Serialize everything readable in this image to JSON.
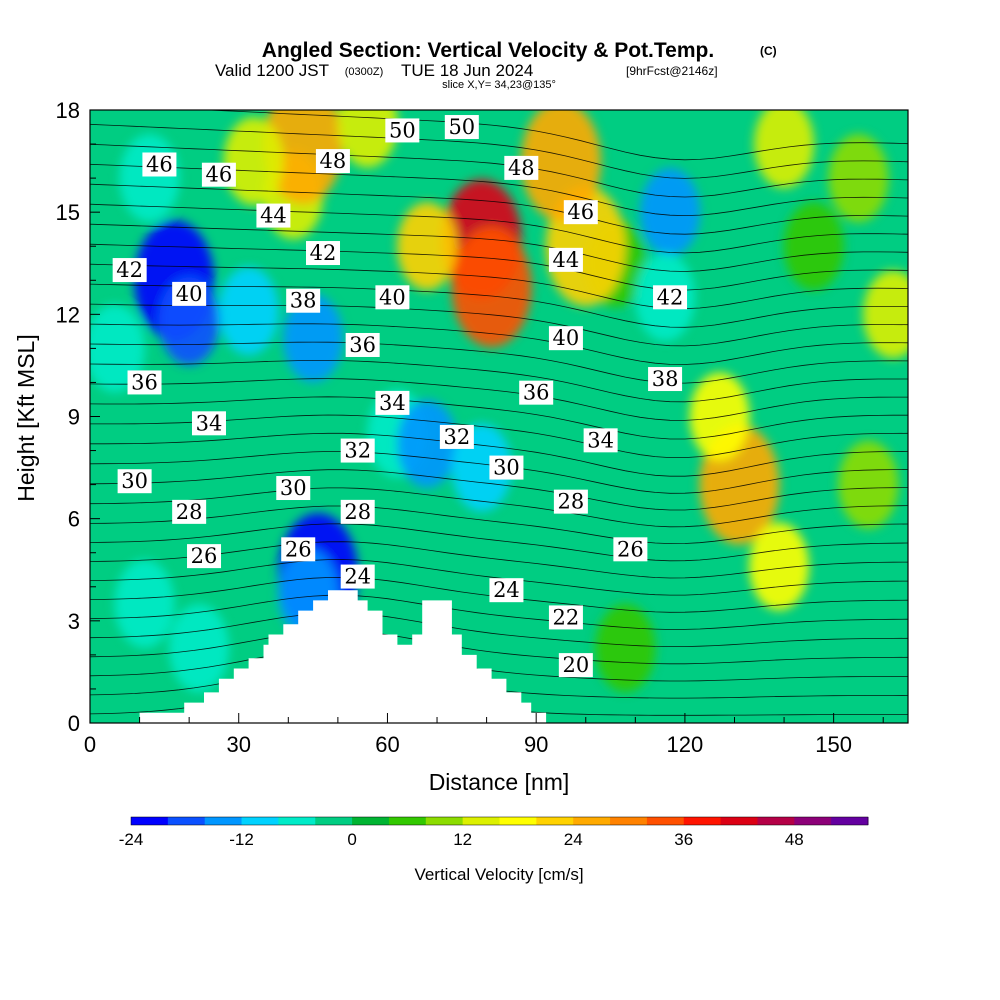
{
  "title": "Angled Section: Vertical Velocity & Pot.Temp.",
  "title_mark": "(C)",
  "subtitle_valid": "Valid 1200 JST",
  "subtitle_utc": "(0300Z)",
  "subtitle_date": "TUE 18 Jun 2024",
  "subtitle_fcst": "[9hrFcst@2146z]",
  "subtitle_slice": "slice X,Y= 34,23@135°",
  "chart_data": {
    "type": "heatmap",
    "xlabel": "Distance [nm]",
    "ylabel": "Height [Kft MSL]",
    "xlim": [
      0,
      165
    ],
    "ylim": [
      0,
      18
    ],
    "x_ticks": [
      0,
      30,
      60,
      90,
      120,
      150
    ],
    "y_ticks": [
      0,
      3,
      6,
      9,
      12,
      15,
      18
    ],
    "colorbar": {
      "label": "Vertical Velocity [cm/s]",
      "ticks": [
        -24,
        -12,
        0,
        12,
        24,
        36,
        48
      ],
      "range": [
        -24,
        56
      ],
      "colors": [
        "#0000ff",
        "#0a50ff",
        "#0096ff",
        "#00d2ff",
        "#00ebc8",
        "#00cd82",
        "#00b432",
        "#32c800",
        "#8cdc00",
        "#dcf000",
        "#ffff00",
        "#ffd200",
        "#ffaa00",
        "#ff8200",
        "#ff5000",
        "#ff1400",
        "#dc0014",
        "#b40046",
        "#8c0078",
        "#6400a0"
      ]
    },
    "terrain_profile": {
      "x": [
        0,
        10,
        16,
        19,
        23,
        26,
        29,
        32,
        35,
        36,
        39,
        42,
        45,
        48,
        51,
        54,
        56,
        59,
        62,
        65,
        67,
        70,
        73,
        75,
        78,
        81,
        84,
        87,
        89,
        92,
        165
      ],
      "height": [
        0,
        0.3,
        0.3,
        0.6,
        0.9,
        1.3,
        1.6,
        1.9,
        2.3,
        2.6,
        2.9,
        3.3,
        3.6,
        3.9,
        3.9,
        3.6,
        3.3,
        2.6,
        2.3,
        2.6,
        3.6,
        3.6,
        2.6,
        2.0,
        1.6,
        1.3,
        0.9,
        0.6,
        0.3,
        0,
        0
      ]
    },
    "vertical_velocity_features": [
      {
        "x": 17,
        "height": 13.0,
        "value": -22
      },
      {
        "x": 20,
        "height": 11.8,
        "value": -18
      },
      {
        "x": 46,
        "height": 4.4,
        "value": -22
      },
      {
        "x": 44,
        "height": 3.8,
        "value": -16
      },
      {
        "x": 32,
        "height": 12.1,
        "value": -10
      },
      {
        "x": 45,
        "height": 11.3,
        "value": -15
      },
      {
        "x": 62,
        "height": 8.5,
        "value": -7
      },
      {
        "x": 68,
        "height": 8.2,
        "value": -14
      },
      {
        "x": 79,
        "height": 7.5,
        "value": -10
      },
      {
        "x": 12,
        "height": 16.0,
        "value": -8
      },
      {
        "x": 5,
        "height": 11.0,
        "value": -8
      },
      {
        "x": 11,
        "height": 3.5,
        "value": -8
      },
      {
        "x": 22,
        "height": 2.2,
        "value": -8
      },
      {
        "x": 106,
        "height": 13.5,
        "value": 4
      },
      {
        "x": 117,
        "height": 15.0,
        "value": -15
      },
      {
        "x": 116,
        "height": 12.5,
        "value": -8
      },
      {
        "x": 79,
        "height": 14.2,
        "value": 42
      },
      {
        "x": 81,
        "height": 12.8,
        "value": 35
      },
      {
        "x": 68,
        "height": 14.0,
        "value": 20
      },
      {
        "x": 100,
        "height": 14.0,
        "value": 22
      },
      {
        "x": 95,
        "height": 16.5,
        "value": 25
      },
      {
        "x": 41,
        "height": 15.5,
        "value": 14
      },
      {
        "x": 43,
        "height": 17.0,
        "value": 24
      },
      {
        "x": 33,
        "height": 16.5,
        "value": 14
      },
      {
        "x": 131,
        "height": 7.0,
        "value": 26
      },
      {
        "x": 139,
        "height": 4.6,
        "value": 18
      },
      {
        "x": 127,
        "height": 9.0,
        "value": 18
      },
      {
        "x": 146,
        "height": 14.0,
        "value": 5
      },
      {
        "x": 155,
        "height": 16.0,
        "value": 10
      },
      {
        "x": 140,
        "height": 17.0,
        "value": 14
      },
      {
        "x": 162,
        "height": 12.0,
        "value": 14
      },
      {
        "x": 157,
        "height": 7.0,
        "value": 10
      },
      {
        "x": 108,
        "height": 2.2,
        "value": 5
      },
      {
        "x": 56,
        "height": 17.6,
        "value": 12
      }
    ],
    "pot_temp_contour_labels": [
      {
        "label": "50",
        "x": 63,
        "height": 17.4
      },
      {
        "label": "50",
        "x": 75,
        "height": 17.5
      },
      {
        "label": "46",
        "x": 14,
        "height": 16.4
      },
      {
        "label": "46",
        "x": 26,
        "height": 16.1
      },
      {
        "label": "48",
        "x": 49,
        "height": 16.5
      },
      {
        "label": "48",
        "x": 87,
        "height": 16.3
      },
      {
        "label": "46",
        "x": 99,
        "height": 15.0
      },
      {
        "label": "44",
        "x": 37,
        "height": 14.9
      },
      {
        "label": "44",
        "x": 96,
        "height": 13.6
      },
      {
        "label": "42",
        "x": 8,
        "height": 13.3
      },
      {
        "label": "42",
        "x": 47,
        "height": 13.8
      },
      {
        "label": "42",
        "x": 117,
        "height": 12.5
      },
      {
        "label": "40",
        "x": 20,
        "height": 12.6
      },
      {
        "label": "40",
        "x": 61,
        "height": 12.5
      },
      {
        "label": "40",
        "x": 96,
        "height": 11.3
      },
      {
        "label": "38",
        "x": 43,
        "height": 12.4
      },
      {
        "label": "38",
        "x": 116,
        "height": 10.1
      },
      {
        "label": "36",
        "x": 11,
        "height": 10.0
      },
      {
        "label": "36",
        "x": 55,
        "height": 11.1
      },
      {
        "label": "36",
        "x": 90,
        "height": 9.7
      },
      {
        "label": "34",
        "x": 24,
        "height": 8.8
      },
      {
        "label": "34",
        "x": 61,
        "height": 9.4
      },
      {
        "label": "34",
        "x": 103,
        "height": 8.3
      },
      {
        "label": "32",
        "x": 54,
        "height": 8.0
      },
      {
        "label": "32",
        "x": 74,
        "height": 8.4
      },
      {
        "label": "30",
        "x": 9,
        "height": 7.1
      },
      {
        "label": "30",
        "x": 41,
        "height": 6.9
      },
      {
        "label": "30",
        "x": 84,
        "height": 7.5
      },
      {
        "label": "28",
        "x": 20,
        "height": 6.2
      },
      {
        "label": "28",
        "x": 54,
        "height": 6.2
      },
      {
        "label": "28",
        "x": 97,
        "height": 6.5
      },
      {
        "label": "26",
        "x": 23,
        "height": 4.9
      },
      {
        "label": "26",
        "x": 42,
        "height": 5.1
      },
      {
        "label": "26",
        "x": 109,
        "height": 5.1
      },
      {
        "label": "24",
        "x": 54,
        "height": 4.3
      },
      {
        "label": "24",
        "x": 84,
        "height": 3.9
      },
      {
        "label": "22",
        "x": 96,
        "height": 3.1
      },
      {
        "label": "20",
        "x": 98,
        "height": 1.7
      }
    ]
  }
}
